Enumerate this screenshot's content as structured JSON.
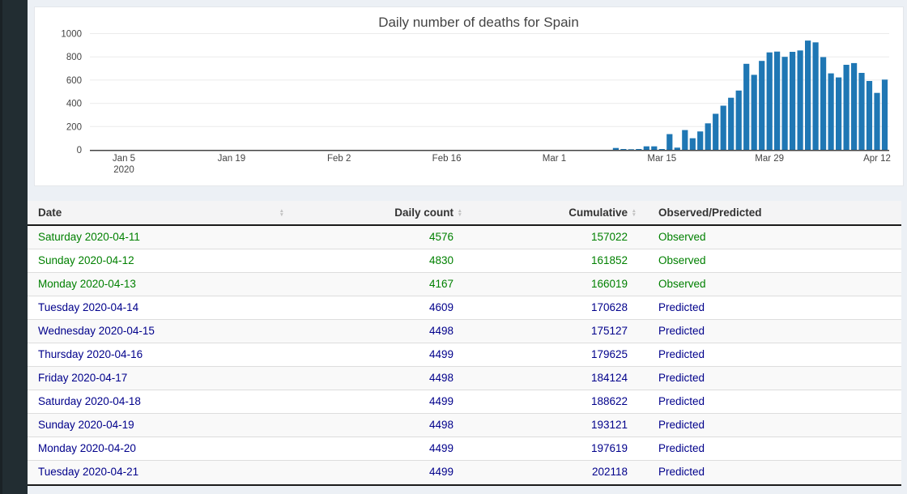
{
  "chart_data": {
    "type": "bar",
    "title": "Daily number of deaths for Spain",
    "bar_color": "#1f77b4",
    "axis_color": "#444444",
    "grid": true,
    "legend": "none",
    "y_ticks": [
      0,
      200,
      400,
      600,
      800,
      1000
    ],
    "ylim": [
      0,
      1050
    ],
    "x_ticks": [
      {
        "label": "Jan 5",
        "sub": "2020",
        "date": "2020-01-05"
      },
      {
        "label": "Jan 19",
        "date": "2020-01-19"
      },
      {
        "label": "Feb 2",
        "date": "2020-02-02"
      },
      {
        "label": "Feb 16",
        "date": "2020-02-16"
      },
      {
        "label": "Mar 1",
        "date": "2020-03-01"
      },
      {
        "label": "Mar 15",
        "date": "2020-03-15"
      },
      {
        "label": "Mar 29",
        "date": "2020-03-29"
      },
      {
        "label": "Apr 12",
        "date": "2020-04-12"
      }
    ],
    "dates": [
      "2020-03-09",
      "2020-03-10",
      "2020-03-11",
      "2020-03-12",
      "2020-03-13",
      "2020-03-14",
      "2020-03-15",
      "2020-03-16",
      "2020-03-17",
      "2020-03-18",
      "2020-03-19",
      "2020-03-20",
      "2020-03-21",
      "2020-03-22",
      "2020-03-23",
      "2020-03-24",
      "2020-03-25",
      "2020-03-26",
      "2020-03-27",
      "2020-03-28",
      "2020-03-29",
      "2020-03-30",
      "2020-03-31",
      "2020-04-01",
      "2020-04-02",
      "2020-04-03",
      "2020-04-04",
      "2020-04-05",
      "2020-04-06",
      "2020-04-07",
      "2020-04-08",
      "2020-04-09",
      "2020-04-10",
      "2020-04-11",
      "2020-04-12",
      "2020-04-13"
    ],
    "values": [
      16,
      7,
      5,
      7,
      30,
      30,
      7,
      135,
      19,
      170,
      100,
      158,
      228,
      310,
      380,
      448,
      510,
      740,
      645,
      765,
      838,
      845,
      800,
      843,
      855,
      940,
      925,
      798,
      658,
      623,
      732,
      746,
      662,
      592,
      490,
      604
    ]
  },
  "table": {
    "headers": [
      {
        "label": "Date",
        "align": "left",
        "sortable": true
      },
      {
        "label": "Daily count",
        "align": "right",
        "sortable": true
      },
      {
        "label": "Cumulative",
        "align": "right",
        "sortable": true
      },
      {
        "label": "Observed/Predicted",
        "align": "left",
        "sortable": false
      }
    ],
    "status_colors": {
      "Observed": "#008000",
      "Predicted": "#00008B"
    },
    "rows": [
      {
        "date": "Saturday 2020-04-11",
        "daily": "4576",
        "cumulative": "157022",
        "status": "Observed"
      },
      {
        "date": "Sunday 2020-04-12",
        "daily": "4830",
        "cumulative": "161852",
        "status": "Observed"
      },
      {
        "date": "Monday 2020-04-13",
        "daily": "4167",
        "cumulative": "166019",
        "status": "Observed"
      },
      {
        "date": "Tuesday 2020-04-14",
        "daily": "4609",
        "cumulative": "170628",
        "status": "Predicted"
      },
      {
        "date": "Wednesday 2020-04-15",
        "daily": "4498",
        "cumulative": "175127",
        "status": "Predicted"
      },
      {
        "date": "Thursday 2020-04-16",
        "daily": "4499",
        "cumulative": "179625",
        "status": "Predicted"
      },
      {
        "date": "Friday 2020-04-17",
        "daily": "4498",
        "cumulative": "184124",
        "status": "Predicted"
      },
      {
        "date": "Saturday 2020-04-18",
        "daily": "4499",
        "cumulative": "188622",
        "status": "Predicted"
      },
      {
        "date": "Sunday 2020-04-19",
        "daily": "4498",
        "cumulative": "193121",
        "status": "Predicted"
      },
      {
        "date": "Monday 2020-04-20",
        "daily": "4499",
        "cumulative": "197619",
        "status": "Predicted"
      },
      {
        "date": "Tuesday 2020-04-21",
        "daily": "4499",
        "cumulative": "202118",
        "status": "Predicted"
      }
    ]
  }
}
